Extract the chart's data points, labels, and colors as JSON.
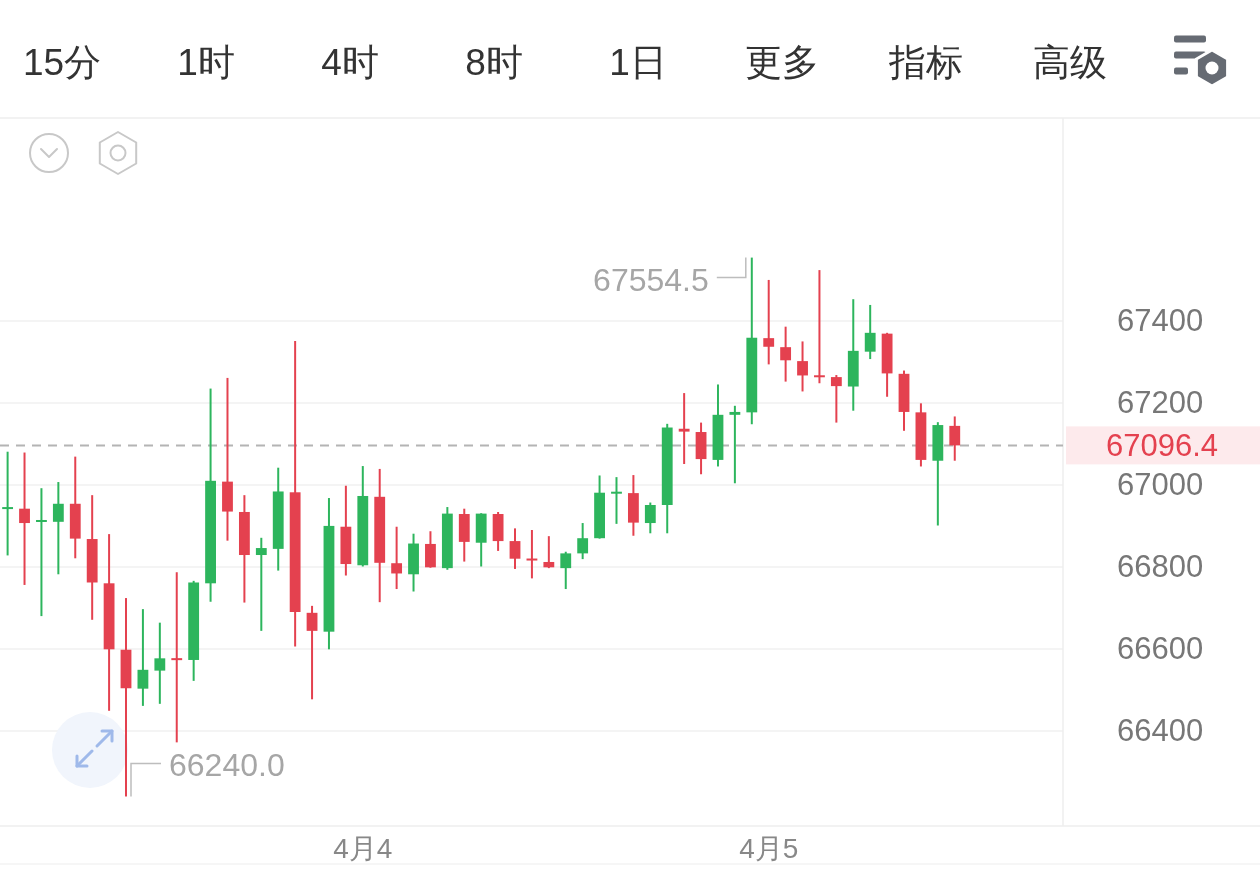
{
  "chart_data": [
    {
      "type": "other",
      "annotations": [
        "15分",
        "1时",
        "4时",
        "8时",
        "1日",
        "更多",
        "指标",
        "高级"
      ]
    },
    {
      "type": "candlestick",
      "categories": [
        null,
        null,
        null,
        null,
        null,
        null,
        null,
        null,
        null,
        null,
        null,
        null,
        null,
        null,
        null,
        null,
        null,
        null,
        null,
        null,
        null,
        "4月4",
        null,
        null,
        null,
        null,
        null,
        null,
        null,
        null,
        null,
        null,
        null,
        null,
        null,
        null,
        null,
        null,
        null,
        null,
        null,
        null,
        null,
        null,
        null,
        "4月5",
        null,
        null,
        null,
        null,
        null,
        null,
        null,
        null,
        null,
        null,
        null
      ],
      "ohlc": [
        [
          66942,
          67081,
          66828,
          66945
        ],
        [
          66942,
          67079,
          66756,
          66907
        ],
        [
          66911,
          66992,
          66680,
          66913
        ],
        [
          66910,
          67007,
          66782,
          66954
        ],
        [
          66954,
          67069,
          66821,
          66869
        ],
        [
          66868,
          66975,
          66671,
          66762
        ],
        [
          66760,
          66880,
          66449,
          66599
        ],
        [
          66598,
          66724,
          66240.0,
          66504
        ],
        [
          66503,
          66697,
          66461,
          66549
        ],
        [
          66547,
          66664,
          66466,
          66577
        ],
        [
          66576,
          66787,
          66372,
          66574
        ],
        [
          66573,
          66766,
          66522,
          66762
        ],
        [
          66760,
          67235,
          66715,
          67010
        ],
        [
          67008,
          67261,
          66864,
          66935
        ],
        [
          66934,
          66975,
          66713,
          66829
        ],
        [
          66829,
          66871,
          66644,
          66846
        ],
        [
          66844,
          67042,
          66791,
          66984
        ],
        [
          66982,
          67351,
          66606,
          66690
        ],
        [
          66688,
          66705,
          66477,
          66644
        ],
        [
          66642,
          66968,
          66599,
          66900
        ],
        [
          66898,
          66998,
          66779,
          66807
        ],
        [
          66804,
          67046,
          66801,
          66973
        ],
        [
          66971,
          67039,
          66714,
          66810
        ],
        [
          66809,
          66898,
          66746,
          66784
        ],
        [
          66782,
          66881,
          66740,
          66857
        ],
        [
          66856,
          66887,
          66798,
          66799
        ],
        [
          66797,
          66946,
          66793,
          66930
        ],
        [
          66929,
          66942,
          66813,
          66861
        ],
        [
          66859,
          66931,
          66801,
          66930
        ],
        [
          66929,
          66934,
          66839,
          66863
        ],
        [
          66863,
          66894,
          66795,
          66820
        ],
        [
          66819,
          66890,
          66772,
          66817
        ],
        [
          66812,
          66875,
          66797,
          66799
        ],
        [
          66797,
          66837,
          66746,
          66833
        ],
        [
          66833,
          66907,
          66819,
          66870
        ],
        [
          66870,
          67023,
          66869,
          66981
        ],
        [
          66980,
          67019,
          66905,
          66982
        ],
        [
          66980,
          67024,
          66876,
          66908
        ],
        [
          66907,
          66957,
          66882,
          66951
        ],
        [
          66951,
          67149,
          66882,
          67140
        ],
        [
          67137,
          67224,
          67051,
          67130
        ],
        [
          67129,
          67152,
          67026,
          67063
        ],
        [
          67061,
          67245,
          67045,
          67171
        ],
        [
          67171,
          67193,
          67004,
          67178
        ],
        [
          67177,
          67554.5,
          67148,
          67359
        ],
        [
          67358,
          67500,
          67294,
          67337
        ],
        [
          67336,
          67386,
          67252,
          67304
        ],
        [
          67302,
          67350,
          67228,
          67267
        ],
        [
          67266,
          67524,
          67248,
          67264
        ],
        [
          67263,
          67268,
          67152,
          67241
        ],
        [
          67240,
          67453,
          67181,
          67327
        ],
        [
          67325,
          67439,
          67307,
          67371
        ],
        [
          67369,
          67371,
          67215,
          67272
        ],
        [
          67271,
          67279,
          67132,
          67178
        ],
        [
          67177,
          67199,
          67045,
          67061
        ],
        [
          67059,
          67153,
          66901,
          67146
        ],
        [
          67144,
          67167,
          67059,
          67096.4
        ]
      ],
      "colors": [
        "#2db55d",
        "#e4414f",
        "#2db55d",
        "#2db55d",
        "#e4414f",
        "#e4414f",
        "#e4414f",
        "#e4414f",
        "#2db55d",
        "#2db55d",
        "#e4414f",
        "#2db55d",
        "#2db55d",
        "#e4414f",
        "#e4414f",
        "#2db55d",
        "#2db55d",
        "#e4414f",
        "#e4414f",
        "#2db55d",
        "#e4414f",
        "#2db55d",
        "#e4414f",
        "#e4414f",
        "#2db55d",
        "#e4414f",
        "#2db55d",
        "#e4414f",
        "#2db55d",
        "#e4414f",
        "#e4414f",
        "#e4414f",
        "#e4414f",
        "#2db55d",
        "#2db55d",
        "#2db55d",
        "#2db55d",
        "#e4414f",
        "#2db55d",
        "#2db55d",
        "#e4414f",
        "#e4414f",
        "#2db55d",
        "#2db55d",
        "#2db55d",
        "#e4414f",
        "#e4414f",
        "#e4414f",
        "#e4414f",
        "#e4414f",
        "#2db55d",
        "#2db55d",
        "#e4414f",
        "#e4414f",
        "#e4414f",
        "#2db55d",
        "#e4414f"
      ],
      "ylim": [
        66168,
        67895
      ],
      "yticks": [
        66400,
        66600,
        66800,
        67000,
        67200,
        67400
      ],
      "grid": "y",
      "ref_lines": [
        {
          "axis": "y",
          "value": 67096.4,
          "label": "67096.4",
          "color": "#b4b4b4",
          "line_style": "dashed"
        }
      ],
      "annotations": [
        "67554.5",
        "66240.0"
      ]
    }
  ]
}
